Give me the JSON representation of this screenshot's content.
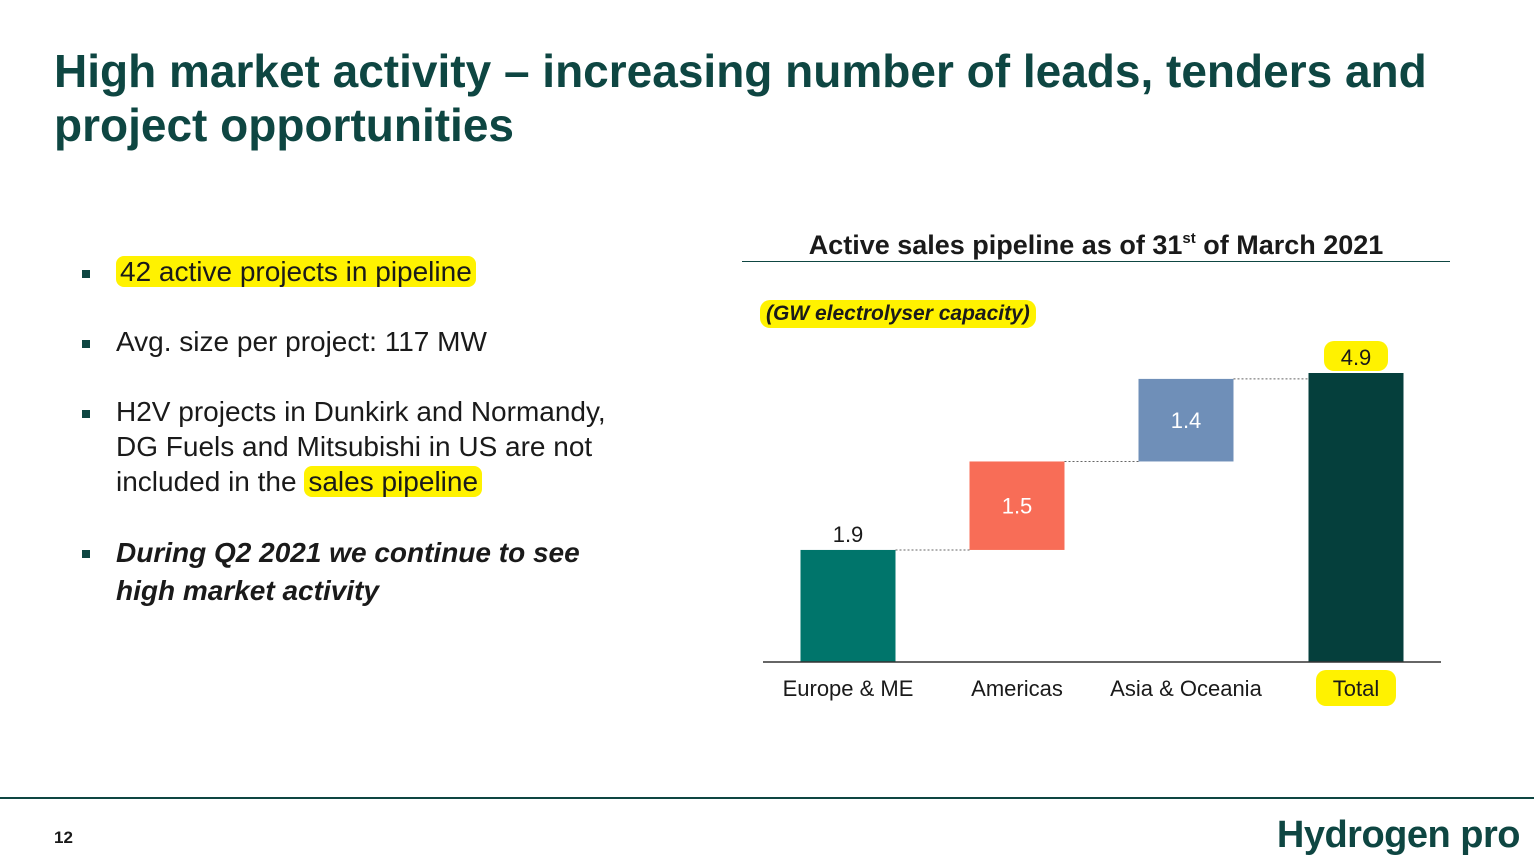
{
  "slide": {
    "title_line1": "High market activity – increasing number of leads, tenders and",
    "title_line2": "project opportunities",
    "page_number": "12",
    "brand": "Hydrogen pro"
  },
  "bullets": {
    "b1": "42 active projects in pipeline",
    "b2": "Avg. size per project: 117 MW",
    "b3_text": "H2V projects in Dunkirk and Normandy, DG Fuels and Mitsubishi in US are not included in the ",
    "b3_highlight": "sales pipeline",
    "b4": "During Q2 2021 we continue to see high market activity"
  },
  "colors": {
    "title": "#0e4642",
    "highlight": "#fff200"
  },
  "chart_data": {
    "type": "bar",
    "subtype": "waterfall",
    "title_prefix": "Active sales pipeline as of 31",
    "title_sup": "st",
    "title_suffix": " of March 2021",
    "unit_label": "(GW electrolyser capacity)",
    "categories": [
      "Europe & ME",
      "Americas",
      "Asia & Oceania",
      "Total"
    ],
    "values": [
      1.9,
      1.5,
      1.4,
      4.9
    ],
    "value_labels": [
      "1.9",
      "1.5",
      "1.4",
      "4.9"
    ],
    "is_total": [
      false,
      false,
      false,
      true
    ],
    "colors": [
      "#00756b",
      "#f86d57",
      "#6f8fb8",
      "#053f3c"
    ],
    "highlighted_categories": [
      "Total"
    ],
    "ylim": [
      0,
      4.9
    ],
    "grid": false,
    "legend": "none"
  }
}
